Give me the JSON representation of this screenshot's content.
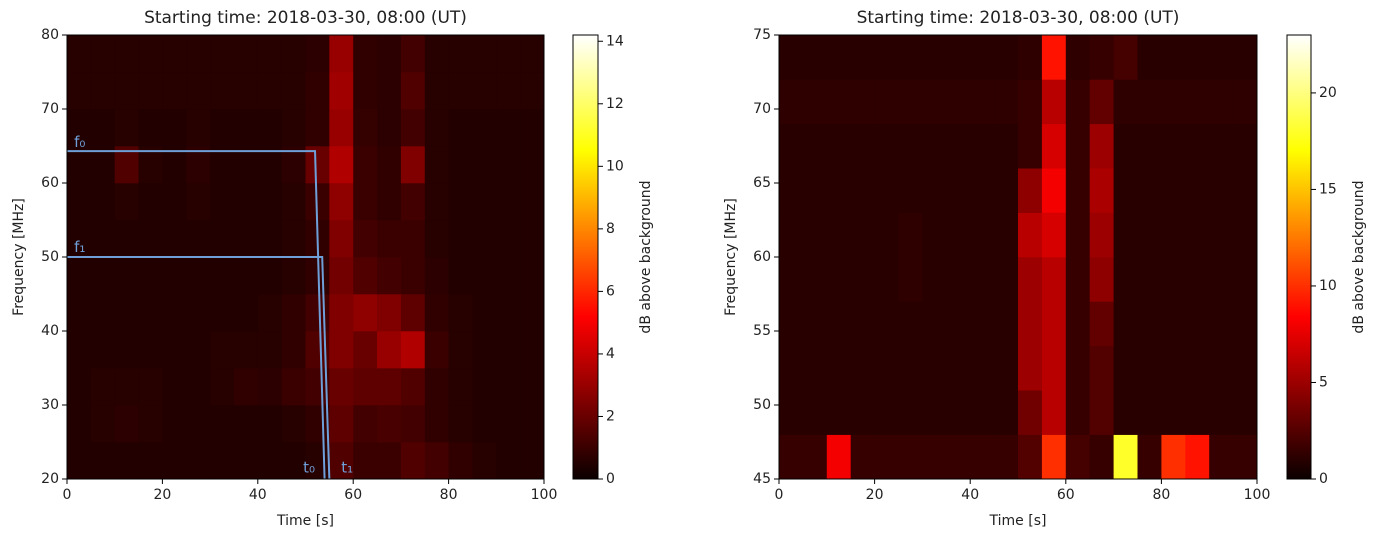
{
  "chart_data": [
    {
      "type": "heatmap",
      "title": "Starting time: 2018-03-30, 08:00 (UT)",
      "x_label": "Time [s]",
      "y_label": "Frequency [MHz]",
      "colorbar_label": "dB above background",
      "colormap": "hot",
      "xlim": [
        0,
        100
      ],
      "ylim": [
        20,
        80
      ],
      "xticks": [
        0,
        20,
        40,
        60,
        80,
        100
      ],
      "yticks": [
        20,
        30,
        40,
        50,
        60,
        70,
        80
      ],
      "clim": [
        0,
        14.2
      ],
      "cticks": [
        0,
        2,
        4,
        6,
        8,
        10,
        12,
        14
      ],
      "x_edges": [
        0,
        5,
        10,
        15,
        20,
        25,
        30,
        35,
        40,
        45,
        50,
        55,
        60,
        65,
        70,
        75,
        80,
        85,
        90,
        95,
        100
      ],
      "y_edges": [
        20,
        25,
        30,
        35,
        40,
        45,
        50,
        55,
        60,
        65,
        70,
        75,
        80
      ],
      "z": [
        [
          0.5,
          0.5,
          0.5,
          0.5,
          0.5,
          0.5,
          0.5,
          0.5,
          0.5,
          0.5,
          0.6,
          1.5,
          1.0,
          1.0,
          1.5,
          1.2,
          0.8,
          0.6,
          0.5,
          0.5
        ],
        [
          0.5,
          0.6,
          0.7,
          0.6,
          0.5,
          0.5,
          0.5,
          0.5,
          0.5,
          0.6,
          0.8,
          1.8,
          1.2,
          1.3,
          1.2,
          0.8,
          0.6,
          0.5,
          0.5,
          0.5
        ],
        [
          0.5,
          0.6,
          0.6,
          0.6,
          0.5,
          0.5,
          0.6,
          0.8,
          0.7,
          1.0,
          1.2,
          2.0,
          1.8,
          1.8,
          1.5,
          0.8,
          0.6,
          0.5,
          0.5,
          0.5
        ],
        [
          0.5,
          0.5,
          0.5,
          0.5,
          0.5,
          0.5,
          0.6,
          0.6,
          0.6,
          0.8,
          1.5,
          2.5,
          2.0,
          3.0,
          3.5,
          1.0,
          0.6,
          0.5,
          0.5,
          0.5
        ],
        [
          0.5,
          0.5,
          0.5,
          0.5,
          0.5,
          0.5,
          0.5,
          0.5,
          0.6,
          0.8,
          1.2,
          2.5,
          2.8,
          2.5,
          1.8,
          0.8,
          0.6,
          0.5,
          0.5,
          0.5
        ],
        [
          0.5,
          0.5,
          0.5,
          0.5,
          0.5,
          0.5,
          0.5,
          0.5,
          0.5,
          0.6,
          0.8,
          2.2,
          1.5,
          1.2,
          1.0,
          0.7,
          0.5,
          0.5,
          0.5,
          0.5
        ],
        [
          0.5,
          0.5,
          0.5,
          0.5,
          0.5,
          0.5,
          0.5,
          0.5,
          0.5,
          0.6,
          0.8,
          2.5,
          1.2,
          1.0,
          1.0,
          0.6,
          0.5,
          0.5,
          0.5,
          0.5
        ],
        [
          0.5,
          0.5,
          0.6,
          0.5,
          0.5,
          0.6,
          0.5,
          0.5,
          0.5,
          0.6,
          1.0,
          2.8,
          1.0,
          0.8,
          1.2,
          0.6,
          0.5,
          0.5,
          0.5,
          0.5
        ],
        [
          0.5,
          0.5,
          1.5,
          0.6,
          0.5,
          0.7,
          0.5,
          0.5,
          0.5,
          0.7,
          2.0,
          3.5,
          1.0,
          0.8,
          2.5,
          0.6,
          0.5,
          0.5,
          0.5,
          0.5
        ],
        [
          0.5,
          0.5,
          0.6,
          0.5,
          0.5,
          0.6,
          0.5,
          0.5,
          0.5,
          0.6,
          0.8,
          3.0,
          0.9,
          0.7,
          1.2,
          0.6,
          0.5,
          0.5,
          0.5,
          0.5
        ],
        [
          0.6,
          0.6,
          0.6,
          0.6,
          0.6,
          0.6,
          0.6,
          0.6,
          0.6,
          0.6,
          0.8,
          3.2,
          0.8,
          0.7,
          1.5,
          0.6,
          0.6,
          0.6,
          0.6,
          0.6
        ],
        [
          0.6,
          0.6,
          0.6,
          0.6,
          0.6,
          0.6,
          0.6,
          0.6,
          0.6,
          0.6,
          0.7,
          3.0,
          0.8,
          0.7,
          1.2,
          0.6,
          0.6,
          0.6,
          0.6,
          0.6
        ]
      ],
      "lines": [
        {
          "x": [
            0,
            52,
            54
          ],
          "y": [
            64.3,
            64.3,
            20
          ]
        },
        {
          "x": [
            0,
            53.5,
            55
          ],
          "y": [
            50,
            50,
            20
          ]
        }
      ],
      "annotations": [
        {
          "text": "f₀",
          "x": 1.5,
          "y": 65.5
        },
        {
          "text": "f₁",
          "x": 1.5,
          "y": 51.3
        },
        {
          "text": "t₀",
          "x": 49.5,
          "y": 21.5
        },
        {
          "text": "t₁",
          "x": 57.5,
          "y": 21.5
        }
      ]
    },
    {
      "type": "heatmap",
      "title": "Starting time: 2018-03-30, 08:00 (UT)",
      "x_label": "Time [s]",
      "y_label": "Frequency [MHz]",
      "colorbar_label": "dB above background",
      "colormap": "hot",
      "xlim": [
        0,
        100
      ],
      "ylim": [
        45,
        75
      ],
      "xticks": [
        0,
        20,
        40,
        60,
        80,
        100
      ],
      "yticks": [
        45,
        50,
        55,
        60,
        65,
        70,
        75
      ],
      "clim": [
        0,
        23
      ],
      "cticks": [
        0,
        5,
        10,
        15,
        20
      ],
      "x_edges": [
        0,
        5,
        10,
        15,
        20,
        25,
        30,
        35,
        40,
        45,
        50,
        55,
        60,
        65,
        70,
        75,
        80,
        85,
        90,
        95,
        100
      ],
      "y_edges": [
        45,
        48,
        51,
        54,
        57,
        60,
        63,
        66,
        69,
        72,
        75
      ],
      "z": [
        [
          1.5,
          1.5,
          8,
          1.5,
          1.5,
          1.5,
          1.5,
          1.5,
          1.5,
          1.5,
          2.5,
          10,
          2,
          1.5,
          18,
          1.5,
          10,
          9,
          1.5,
          1.5
        ],
        [
          1,
          1,
          1,
          1,
          1,
          1,
          1,
          1,
          1,
          1,
          3.5,
          6,
          1.5,
          2.5,
          1,
          1,
          1,
          1,
          1,
          1
        ],
        [
          1,
          1,
          1,
          1,
          1,
          1,
          1,
          1,
          1,
          1,
          5,
          6,
          1.5,
          2.5,
          1,
          1,
          1,
          1,
          1,
          1
        ],
        [
          1,
          1,
          1,
          1,
          1,
          1,
          1,
          1,
          1,
          1,
          5,
          6,
          1.5,
          3,
          1,
          1,
          1,
          1,
          1,
          1
        ],
        [
          1,
          1,
          1,
          1,
          1,
          1.2,
          1,
          1,
          1,
          1,
          5,
          6,
          1.5,
          4.5,
          1,
          1,
          1,
          1,
          1,
          1
        ],
        [
          1,
          1,
          1,
          1,
          1,
          1.2,
          1,
          1,
          1,
          1,
          6,
          7,
          1.5,
          5,
          1,
          1,
          1,
          1,
          1,
          1
        ],
        [
          1,
          1,
          1,
          1,
          1,
          1,
          1,
          1,
          1,
          1,
          4.5,
          8,
          1.5,
          5.5,
          1,
          1,
          1,
          1,
          1,
          1
        ],
        [
          1,
          1,
          1,
          1,
          1,
          1,
          1,
          1,
          1,
          1,
          1.5,
          7,
          1.5,
          5,
          1,
          1,
          1,
          1,
          1,
          1
        ],
        [
          1.2,
          1.2,
          1.2,
          1.2,
          1.2,
          1.2,
          1.2,
          1.2,
          1.2,
          1.2,
          1.5,
          6,
          1.5,
          3,
          1.2,
          1.2,
          1.2,
          1.2,
          1.2,
          1.2
        ],
        [
          1,
          1,
          1,
          1,
          1,
          1,
          1,
          1,
          1,
          1,
          1.2,
          9,
          1.2,
          1.5,
          2,
          1,
          1,
          1,
          1,
          1
        ]
      ]
    }
  ]
}
